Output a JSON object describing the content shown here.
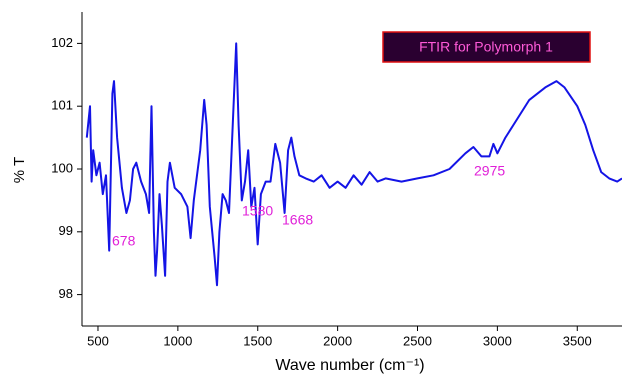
{
  "chart_data": {
    "type": "line",
    "title": "FTIR for Polymorph 1",
    "x_label": "Wave number (cm⁻¹)",
    "y_label": "% T",
    "annotations": [
      "678",
      "1580",
      "1668",
      "2975"
    ],
    "xlim": [
      400,
      3780
    ],
    "ylim": [
      97.5,
      102.5
    ],
    "xticks": [
      500,
      1000,
      1500,
      2000,
      2500,
      3000,
      3500
    ],
    "yticks": [
      98,
      99,
      100,
      101,
      102
    ],
    "x": [
      430,
      450,
      460,
      470,
      490,
      510,
      530,
      550,
      570,
      590,
      600,
      620,
      650,
      678,
      700,
      720,
      740,
      770,
      800,
      820,
      835,
      850,
      860,
      870,
      885,
      900,
      920,
      935,
      950,
      980,
      1020,
      1060,
      1080,
      1100,
      1140,
      1165,
      1180,
      1200,
      1230,
      1245,
      1260,
      1280,
      1300,
      1320,
      1340,
      1365,
      1380,
      1400,
      1420,
      1440,
      1460,
      1480,
      1500,
      1520,
      1550,
      1580,
      1610,
      1640,
      1668,
      1690,
      1710,
      1730,
      1760,
      1800,
      1850,
      1900,
      1950,
      2000,
      2050,
      2100,
      2150,
      2200,
      2250,
      2300,
      2400,
      2500,
      2600,
      2700,
      2800,
      2850,
      2900,
      2950,
      2975,
      3000,
      3050,
      3100,
      3200,
      3300,
      3370,
      3420,
      3500,
      3550,
      3600,
      3650,
      3700,
      3750,
      3780
    ],
    "series": [
      {
        "color": "#1414e6",
        "values": [
          100.5,
          101.0,
          99.8,
          100.3,
          99.9,
          100.1,
          99.6,
          99.9,
          98.7,
          101.2,
          101.4,
          100.5,
          99.7,
          99.3,
          99.5,
          100.0,
          100.1,
          99.8,
          99.6,
          99.3,
          101.0,
          99.0,
          98.3,
          98.7,
          99.6,
          99.1,
          98.3,
          99.8,
          100.1,
          99.7,
          99.6,
          99.4,
          98.9,
          99.5,
          100.3,
          101.1,
          100.7,
          99.4,
          98.6,
          98.15,
          99.0,
          99.6,
          99.5,
          99.3,
          100.5,
          102.0,
          100.7,
          99.5,
          99.8,
          100.3,
          99.4,
          99.7,
          98.8,
          99.6,
          99.8,
          99.8,
          100.4,
          100.1,
          99.3,
          100.3,
          100.5,
          100.2,
          99.9,
          99.85,
          99.8,
          99.9,
          99.7,
          99.8,
          99.7,
          99.9,
          99.75,
          99.95,
          99.8,
          99.85,
          99.8,
          99.85,
          99.9,
          100.0,
          100.25,
          100.35,
          100.2,
          100.2,
          100.4,
          100.25,
          100.5,
          100.7,
          101.1,
          101.3,
          101.4,
          101.3,
          101.0,
          100.7,
          100.3,
          99.95,
          99.85,
          99.8,
          99.85
        ]
      }
    ]
  }
}
